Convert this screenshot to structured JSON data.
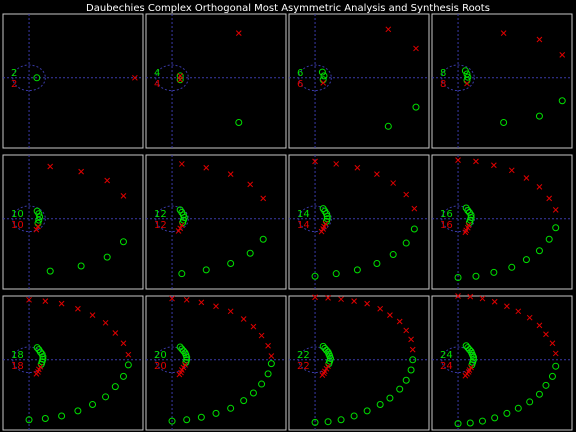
{
  "title": "Daubechies Complex Orthogonal Most Asymmetric Analysis and Synthesis Roots",
  "colors": {
    "analysis": "#00e000",
    "synthesis": "#e00000",
    "axis": "#3a3aa8",
    "frame": "#c8c8c8"
  },
  "chart_data": {
    "type": "scatter",
    "description_markers": {
      "analysis": "circle",
      "synthesis": "x"
    },
    "xlim": [
      -1.6,
      7.0
    ],
    "ylim": [
      -5.5,
      5.0
    ],
    "grid": false,
    "panels": [
      {
        "order": "2",
        "analysis_label": "2",
        "synthesis_label": "2",
        "analysis": [
          [
            0.48,
            0.0
          ]
        ],
        "synthesis": [
          [
            6.5,
            0.0
          ]
        ]
      },
      {
        "order": "4",
        "analysis_label": "4",
        "synthesis_label": "4",
        "analysis": [
          [
            0.5,
            0.15
          ],
          [
            0.5,
            -0.15
          ],
          [
            4.1,
            -3.5
          ]
        ],
        "synthesis": [
          [
            0.5,
            0.15
          ],
          [
            0.5,
            -0.15
          ],
          [
            4.1,
            3.5
          ]
        ]
      },
      {
        "order": "6",
        "analysis_label": "6",
        "synthesis_label": "6",
        "analysis": [
          [
            0.45,
            0.45
          ],
          [
            0.55,
            0.15
          ],
          [
            0.5,
            -0.15
          ],
          [
            4.5,
            -3.8
          ],
          [
            6.2,
            -2.3
          ]
        ],
        "synthesis": [
          [
            0.5,
            -0.4
          ],
          [
            6.2,
            2.3
          ],
          [
            4.5,
            3.8
          ]
        ]
      },
      {
        "order": "8",
        "analysis_label": "8",
        "synthesis_label": "8",
        "analysis": [
          [
            0.45,
            0.55
          ],
          [
            0.55,
            0.3
          ],
          [
            0.6,
            0.05
          ],
          [
            0.55,
            -0.2
          ],
          [
            2.8,
            -3.5
          ],
          [
            5.0,
            -3.0
          ],
          [
            6.4,
            -1.8
          ]
        ],
        "synthesis": [
          [
            0.55,
            -0.45
          ],
          [
            6.4,
            1.8
          ],
          [
            5.0,
            3.0
          ],
          [
            2.8,
            3.5
          ]
        ]
      },
      {
        "order": "10",
        "analysis_label": "10",
        "synthesis_label": "10",
        "analysis": [
          [
            0.5,
            0.6
          ],
          [
            0.6,
            0.4
          ],
          [
            0.65,
            0.15
          ],
          [
            0.6,
            -0.1
          ],
          [
            0.55,
            -0.35
          ],
          [
            1.3,
            -4.1
          ],
          [
            3.2,
            -3.7
          ],
          [
            4.8,
            -3.0
          ],
          [
            5.8,
            -1.8
          ]
        ],
        "synthesis": [
          [
            0.55,
            -0.6
          ],
          [
            0.45,
            -0.85
          ],
          [
            5.8,
            1.8
          ],
          [
            4.8,
            3.0
          ],
          [
            3.2,
            3.7
          ],
          [
            1.3,
            4.1
          ]
        ]
      },
      {
        "order": "12",
        "analysis_label": "12",
        "synthesis_label": "12",
        "analysis": [
          [
            0.5,
            0.7
          ],
          [
            0.6,
            0.5
          ],
          [
            0.7,
            0.3
          ],
          [
            0.75,
            0.1
          ],
          [
            0.7,
            -0.1
          ],
          [
            0.65,
            -0.3
          ],
          [
            0.6,
            -4.3
          ],
          [
            2.1,
            -4.0
          ],
          [
            3.6,
            -3.5
          ],
          [
            4.8,
            -2.7
          ],
          [
            5.6,
            -1.6
          ]
        ],
        "synthesis": [
          [
            0.6,
            -0.5
          ],
          [
            0.5,
            -0.75
          ],
          [
            0.4,
            -0.95
          ],
          [
            5.6,
            1.6
          ],
          [
            4.8,
            2.7
          ],
          [
            3.6,
            3.5
          ],
          [
            2.1,
            4.0
          ],
          [
            0.6,
            4.3
          ]
        ]
      },
      {
        "order": "14",
        "analysis_label": "14",
        "synthesis_label": "14",
        "analysis": [
          [
            0.5,
            0.8
          ],
          [
            0.6,
            0.6
          ],
          [
            0.7,
            0.4
          ],
          [
            0.75,
            0.2
          ],
          [
            0.75,
            0.0
          ],
          [
            0.7,
            -0.2
          ],
          [
            0.0,
            -4.5
          ],
          [
            1.3,
            -4.3
          ],
          [
            2.6,
            -4.0
          ],
          [
            3.8,
            -3.5
          ],
          [
            4.8,
            -2.8
          ],
          [
            5.6,
            -1.9
          ],
          [
            6.1,
            -0.8
          ]
        ],
        "synthesis": [
          [
            0.65,
            -0.4
          ],
          [
            0.55,
            -0.6
          ],
          [
            0.5,
            -0.8
          ],
          [
            0.4,
            -1.0
          ],
          [
            6.1,
            0.8
          ],
          [
            5.6,
            1.9
          ],
          [
            4.8,
            2.8
          ],
          [
            3.8,
            3.5
          ],
          [
            2.6,
            4.0
          ],
          [
            1.3,
            4.3
          ],
          [
            0.0,
            4.5
          ]
        ]
      },
      {
        "order": "16",
        "analysis_label": "16",
        "synthesis_label": "16",
        "analysis": [
          [
            0.5,
            0.85
          ],
          [
            0.6,
            0.65
          ],
          [
            0.7,
            0.5
          ],
          [
            0.8,
            0.3
          ],
          [
            0.8,
            0.1
          ],
          [
            0.75,
            -0.1
          ],
          [
            0.7,
            -0.3
          ],
          [
            0.0,
            -4.6
          ],
          [
            1.1,
            -4.5
          ],
          [
            2.2,
            -4.2
          ],
          [
            3.3,
            -3.8
          ],
          [
            4.2,
            -3.2
          ],
          [
            5.0,
            -2.5
          ],
          [
            5.6,
            -1.6
          ],
          [
            6.0,
            -0.7
          ]
        ],
        "synthesis": [
          [
            0.65,
            -0.5
          ],
          [
            0.6,
            -0.7
          ],
          [
            0.5,
            -0.9
          ],
          [
            0.45,
            -1.05
          ],
          [
            6.0,
            0.7
          ],
          [
            5.6,
            1.6
          ],
          [
            5.0,
            2.5
          ],
          [
            4.2,
            3.2
          ],
          [
            3.3,
            3.8
          ],
          [
            2.2,
            4.2
          ],
          [
            1.1,
            4.5
          ],
          [
            0.0,
            4.6
          ]
        ]
      },
      {
        "order": "18",
        "analysis_label": "18",
        "synthesis_label": "18",
        "analysis": [
          [
            0.5,
            0.95
          ],
          [
            0.6,
            0.8
          ],
          [
            0.7,
            0.6
          ],
          [
            0.8,
            0.45
          ],
          [
            0.85,
            0.25
          ],
          [
            0.85,
            0.05
          ],
          [
            0.8,
            -0.15
          ],
          [
            0.75,
            -0.35
          ],
          [
            0.0,
            -4.7
          ],
          [
            1.0,
            -4.6
          ],
          [
            2.0,
            -4.4
          ],
          [
            3.0,
            -4.0
          ],
          [
            3.9,
            -3.5
          ],
          [
            4.7,
            -2.9
          ],
          [
            5.3,
            -2.1
          ],
          [
            5.8,
            -1.3
          ],
          [
            6.1,
            -0.4
          ]
        ],
        "synthesis": [
          [
            0.7,
            -0.55
          ],
          [
            0.6,
            -0.75
          ],
          [
            0.55,
            -0.95
          ],
          [
            0.45,
            -1.1
          ],
          [
            6.1,
            0.4
          ],
          [
            5.8,
            1.3
          ],
          [
            5.3,
            2.1
          ],
          [
            4.7,
            2.9
          ],
          [
            3.9,
            3.5
          ],
          [
            3.0,
            4.0
          ],
          [
            2.0,
            4.4
          ],
          [
            1.0,
            4.6
          ],
          [
            0.0,
            4.7
          ]
        ]
      },
      {
        "order": "20",
        "analysis_label": "20",
        "synthesis_label": "20",
        "analysis": [
          [
            0.5,
            1.0
          ],
          [
            0.6,
            0.85
          ],
          [
            0.7,
            0.7
          ],
          [
            0.8,
            0.55
          ],
          [
            0.85,
            0.4
          ],
          [
            0.9,
            0.2
          ],
          [
            0.9,
            0.0
          ],
          [
            0.85,
            -0.2
          ],
          [
            0.0,
            -4.8
          ],
          [
            0.9,
            -4.7
          ],
          [
            1.8,
            -4.5
          ],
          [
            2.7,
            -4.2
          ],
          [
            3.6,
            -3.8
          ],
          [
            4.4,
            -3.2
          ],
          [
            5.0,
            -2.6
          ],
          [
            5.5,
            -1.9
          ],
          [
            5.9,
            -1.1
          ],
          [
            6.1,
            -0.3
          ]
        ],
        "synthesis": [
          [
            0.8,
            -0.4
          ],
          [
            0.7,
            -0.6
          ],
          [
            0.6,
            -0.8
          ],
          [
            0.55,
            -1.0
          ],
          [
            0.45,
            -1.15
          ],
          [
            6.1,
            0.3
          ],
          [
            5.9,
            1.1
          ],
          [
            5.5,
            1.9
          ],
          [
            5.0,
            2.6
          ],
          [
            4.4,
            3.2
          ],
          [
            3.6,
            3.8
          ],
          [
            2.7,
            4.2
          ],
          [
            1.8,
            4.5
          ],
          [
            0.9,
            4.7
          ],
          [
            0.0,
            4.8
          ]
        ]
      },
      {
        "order": "22",
        "analysis_label": "22",
        "synthesis_label": "22",
        "analysis": [
          [
            0.5,
            1.05
          ],
          [
            0.6,
            0.9
          ],
          [
            0.7,
            0.75
          ],
          [
            0.8,
            0.6
          ],
          [
            0.85,
            0.45
          ],
          [
            0.9,
            0.3
          ],
          [
            0.95,
            0.1
          ],
          [
            0.9,
            -0.1
          ],
          [
            0.85,
            -0.3
          ],
          [
            0.0,
            -4.9
          ],
          [
            0.8,
            -4.85
          ],
          [
            1.6,
            -4.7
          ],
          [
            2.4,
            -4.4
          ],
          [
            3.2,
            -4.0
          ],
          [
            4.0,
            -3.5
          ],
          [
            4.6,
            -3.0
          ],
          [
            5.2,
            -2.3
          ],
          [
            5.6,
            -1.6
          ],
          [
            5.9,
            -0.8
          ],
          [
            6.0,
            0.0
          ]
        ],
        "synthesis": [
          [
            0.8,
            -0.5
          ],
          [
            0.7,
            -0.7
          ],
          [
            0.6,
            -0.9
          ],
          [
            0.55,
            -1.05
          ],
          [
            0.45,
            -1.2
          ],
          [
            6.0,
            0.8
          ],
          [
            5.9,
            1.6
          ],
          [
            5.6,
            2.3
          ],
          [
            5.2,
            3.0
          ],
          [
            4.6,
            3.5
          ],
          [
            4.0,
            4.0
          ],
          [
            3.2,
            4.4
          ],
          [
            2.4,
            4.6
          ],
          [
            1.6,
            4.75
          ],
          [
            0.8,
            4.85
          ],
          [
            0.0,
            4.9
          ]
        ]
      },
      {
        "order": "24",
        "analysis_label": "24",
        "synthesis_label": "24",
        "analysis": [
          [
            0.5,
            1.1
          ],
          [
            0.6,
            0.95
          ],
          [
            0.7,
            0.8
          ],
          [
            0.8,
            0.65
          ],
          [
            0.85,
            0.5
          ],
          [
            0.9,
            0.35
          ],
          [
            0.95,
            0.2
          ],
          [
            0.95,
            0.0
          ],
          [
            0.9,
            -0.2
          ],
          [
            0.85,
            -0.4
          ],
          [
            0.0,
            -5.0
          ],
          [
            0.75,
            -4.95
          ],
          [
            1.5,
            -4.8
          ],
          [
            2.25,
            -4.55
          ],
          [
            3.0,
            -4.2
          ],
          [
            3.7,
            -3.8
          ],
          [
            4.4,
            -3.3
          ],
          [
            5.0,
            -2.7
          ],
          [
            5.4,
            -2.0
          ],
          [
            5.8,
            -1.3
          ],
          [
            6.0,
            -0.5
          ]
        ],
        "synthesis": [
          [
            0.8,
            -0.6
          ],
          [
            0.7,
            -0.8
          ],
          [
            0.65,
            -0.95
          ],
          [
            0.55,
            -1.1
          ],
          [
            0.45,
            -1.25
          ],
          [
            6.0,
            0.5
          ],
          [
            5.8,
            1.3
          ],
          [
            5.4,
            2.0
          ],
          [
            5.0,
            2.7
          ],
          [
            4.4,
            3.3
          ],
          [
            3.7,
            3.8
          ],
          [
            3.0,
            4.2
          ],
          [
            2.25,
            4.55
          ],
          [
            1.5,
            4.8
          ],
          [
            0.75,
            4.95
          ],
          [
            0.0,
            5.0
          ]
        ]
      }
    ]
  }
}
